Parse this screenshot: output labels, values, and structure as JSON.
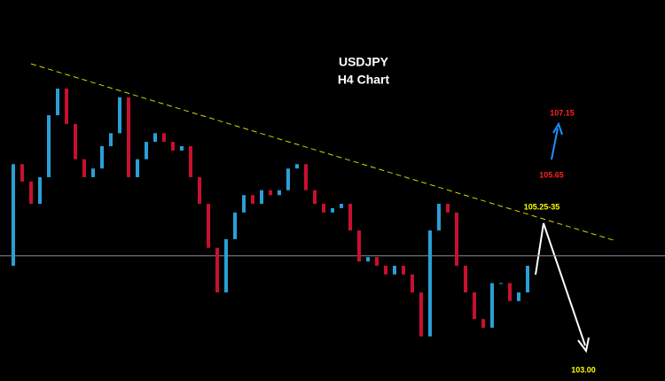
{
  "chart_data": {
    "type": "candlestick",
    "title": "USDJPY",
    "subtitle": "H4 Chart",
    "close": [
      104.37,
      106.01,
      105.73,
      105.37,
      105.8,
      106.8,
      107.23,
      106.66,
      106.09,
      105.8,
      105.94,
      106.3,
      106.51,
      107.09,
      105.8,
      106.09,
      106.37,
      106.51,
      106.37,
      106.23,
      106.3,
      105.8,
      105.37,
      104.66,
      103.94,
      104.8,
      105.23,
      105.51,
      105.37,
      105.59,
      105.51,
      105.59,
      105.94,
      106.01,
      105.59,
      105.37,
      105.23,
      105.3,
      105.37,
      104.94,
      104.44,
      104.51,
      104.37,
      104.23,
      104.37,
      104.23,
      103.94,
      103.23,
      104.94,
      105.37,
      105.23,
      104.37,
      103.94,
      103.51,
      103.37,
      104.09,
      104.09,
      103.8,
      103.94,
      104.37
    ],
    "up_color": "#2a9fd6",
    "down_color": "#c8102e",
    "ylim": [
      102.51,
      108.66
    ],
    "current_price": 104.53,
    "trendline": {
      "start": 107.63,
      "end": 104.77,
      "color": "#d4d400"
    },
    "annotations": [
      {
        "text": "107.15",
        "color": "#ff2020"
      },
      {
        "text": "105.65",
        "color": "#ff2020"
      },
      {
        "text": "105.25-35",
        "color": "#ffff00"
      },
      {
        "text": "103.00",
        "color": "#ffff00"
      }
    ]
  }
}
